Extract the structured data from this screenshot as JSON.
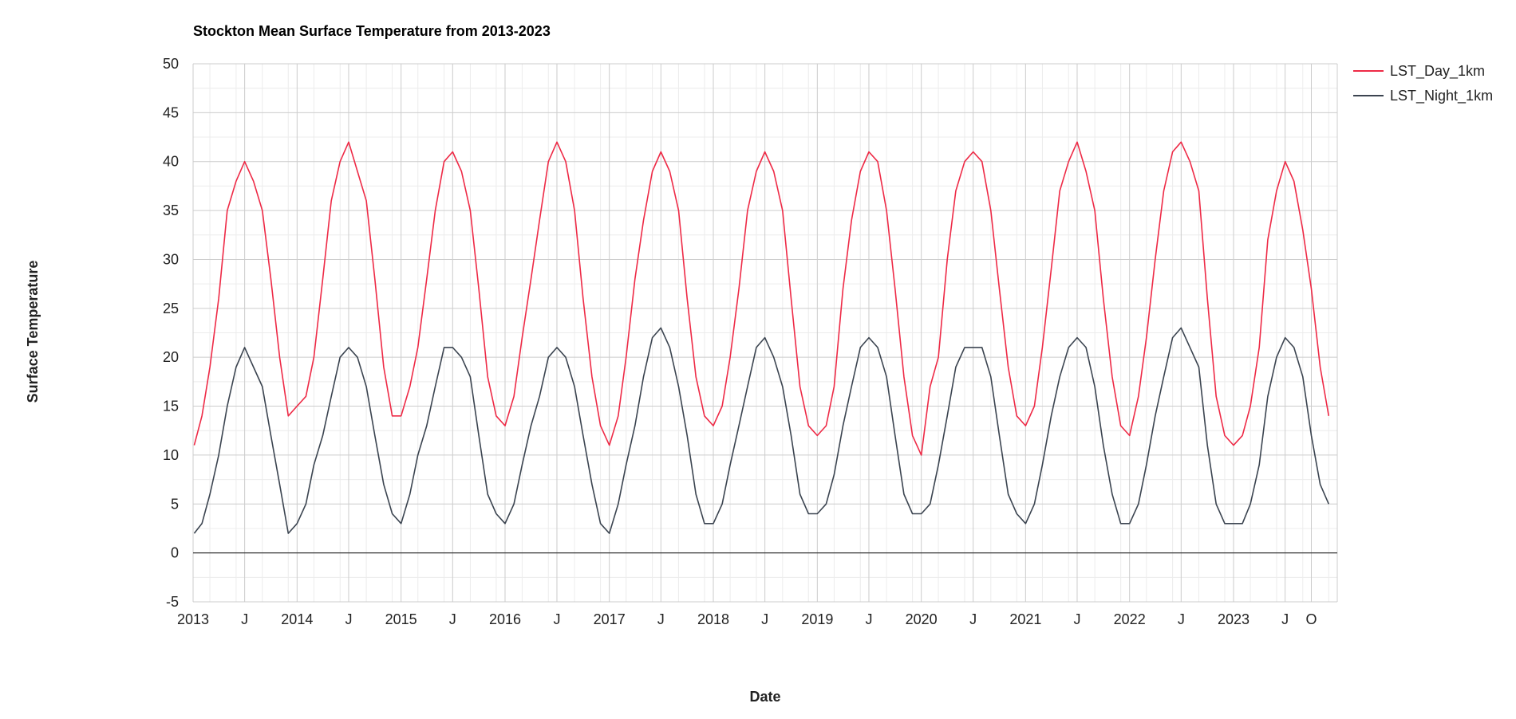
{
  "chart_data": {
    "type": "line",
    "title": "Stockton Mean Surface Temperature from 2013-2023",
    "xlabel": "Date",
    "ylabel": "Surface Temperature",
    "ylim": [
      -5,
      50
    ],
    "yticks": [
      -5,
      0,
      5,
      10,
      15,
      20,
      25,
      30,
      35,
      40,
      45,
      50
    ],
    "xlim": [
      "2013-01-01",
      "2023-12-31"
    ],
    "xticks": [
      {
        "date": "2013-01-01",
        "label": "2013"
      },
      {
        "date": "2013-07-01",
        "label": "J"
      },
      {
        "date": "2014-01-01",
        "label": "2014"
      },
      {
        "date": "2014-07-01",
        "label": "J"
      },
      {
        "date": "2015-01-01",
        "label": "2015"
      },
      {
        "date": "2015-07-01",
        "label": "J"
      },
      {
        "date": "2016-01-01",
        "label": "2016"
      },
      {
        "date": "2016-07-01",
        "label": "J"
      },
      {
        "date": "2017-01-01",
        "label": "2017"
      },
      {
        "date": "2017-07-01",
        "label": "J"
      },
      {
        "date": "2018-01-01",
        "label": "2018"
      },
      {
        "date": "2018-07-01",
        "label": "J"
      },
      {
        "date": "2019-01-01",
        "label": "2019"
      },
      {
        "date": "2019-07-01",
        "label": "J"
      },
      {
        "date": "2020-01-01",
        "label": "2020"
      },
      {
        "date": "2020-07-01",
        "label": "J"
      },
      {
        "date": "2021-01-01",
        "label": "2021"
      },
      {
        "date": "2021-07-01",
        "label": "J"
      },
      {
        "date": "2022-01-01",
        "label": "2022"
      },
      {
        "date": "2022-07-01",
        "label": "J"
      },
      {
        "date": "2023-01-01",
        "label": "2023"
      },
      {
        "date": "2023-07-01",
        "label": "J"
      },
      {
        "date": "2023-10-01",
        "label": "O"
      }
    ],
    "grid": true,
    "legend_position": "top-right",
    "series": [
      {
        "name": "LST_Day_1km",
        "color": "#ee2a46",
        "points": [
          [
            "2013-01-05",
            11
          ],
          [
            "2013-02-01",
            14
          ],
          [
            "2013-03-01",
            19
          ],
          [
            "2013-04-01",
            26
          ],
          [
            "2013-05-01",
            35
          ],
          [
            "2013-06-01",
            38
          ],
          [
            "2013-07-01",
            40
          ],
          [
            "2013-08-01",
            38
          ],
          [
            "2013-09-01",
            35
          ],
          [
            "2013-10-01",
            28
          ],
          [
            "2013-11-01",
            20
          ],
          [
            "2013-12-01",
            14
          ],
          [
            "2014-01-01",
            15
          ],
          [
            "2014-02-01",
            16
          ],
          [
            "2014-03-01",
            20
          ],
          [
            "2014-04-01",
            28
          ],
          [
            "2014-05-01",
            36
          ],
          [
            "2014-06-01",
            40
          ],
          [
            "2014-07-01",
            42
          ],
          [
            "2014-08-01",
            39
          ],
          [
            "2014-09-01",
            36
          ],
          [
            "2014-10-01",
            28
          ],
          [
            "2014-11-01",
            19
          ],
          [
            "2014-12-01",
            14
          ],
          [
            "2015-01-01",
            14
          ],
          [
            "2015-02-01",
            17
          ],
          [
            "2015-03-01",
            21
          ],
          [
            "2015-04-01",
            28
          ],
          [
            "2015-05-01",
            35
          ],
          [
            "2015-06-01",
            40
          ],
          [
            "2015-07-01",
            41
          ],
          [
            "2015-08-01",
            39
          ],
          [
            "2015-09-01",
            35
          ],
          [
            "2015-10-01",
            27
          ],
          [
            "2015-11-01",
            18
          ],
          [
            "2015-12-01",
            14
          ],
          [
            "2016-01-01",
            13
          ],
          [
            "2016-02-01",
            16
          ],
          [
            "2016-03-01",
            22
          ],
          [
            "2016-04-01",
            28
          ],
          [
            "2016-05-01",
            34
          ],
          [
            "2016-06-01",
            40
          ],
          [
            "2016-07-01",
            42
          ],
          [
            "2016-08-01",
            40
          ],
          [
            "2016-09-01",
            35
          ],
          [
            "2016-10-01",
            26
          ],
          [
            "2016-11-01",
            18
          ],
          [
            "2016-12-01",
            13
          ],
          [
            "2017-01-01",
            11
          ],
          [
            "2017-02-01",
            14
          ],
          [
            "2017-03-01",
            20
          ],
          [
            "2017-04-01",
            28
          ],
          [
            "2017-05-01",
            34
          ],
          [
            "2017-06-01",
            39
          ],
          [
            "2017-07-01",
            41
          ],
          [
            "2017-08-01",
            39
          ],
          [
            "2017-09-01",
            35
          ],
          [
            "2017-10-01",
            26
          ],
          [
            "2017-11-01",
            18
          ],
          [
            "2017-12-01",
            14
          ],
          [
            "2018-01-01",
            13
          ],
          [
            "2018-02-01",
            15
          ],
          [
            "2018-03-01",
            20
          ],
          [
            "2018-04-01",
            27
          ],
          [
            "2018-05-01",
            35
          ],
          [
            "2018-06-01",
            39
          ],
          [
            "2018-07-01",
            41
          ],
          [
            "2018-08-01",
            39
          ],
          [
            "2018-09-01",
            35
          ],
          [
            "2018-10-01",
            26
          ],
          [
            "2018-11-01",
            17
          ],
          [
            "2018-12-01",
            13
          ],
          [
            "2019-01-01",
            12
          ],
          [
            "2019-02-01",
            13
          ],
          [
            "2019-03-01",
            17
          ],
          [
            "2019-04-01",
            27
          ],
          [
            "2019-05-01",
            34
          ],
          [
            "2019-06-01",
            39
          ],
          [
            "2019-07-01",
            41
          ],
          [
            "2019-08-01",
            40
          ],
          [
            "2019-09-01",
            35
          ],
          [
            "2019-10-01",
            27
          ],
          [
            "2019-11-01",
            18
          ],
          [
            "2019-12-01",
            12
          ],
          [
            "2020-01-01",
            10
          ],
          [
            "2020-02-01",
            17
          ],
          [
            "2020-03-01",
            20
          ],
          [
            "2020-04-01",
            30
          ],
          [
            "2020-05-01",
            37
          ],
          [
            "2020-06-01",
            40
          ],
          [
            "2020-07-01",
            41
          ],
          [
            "2020-08-01",
            40
          ],
          [
            "2020-09-01",
            35
          ],
          [
            "2020-10-01",
            27
          ],
          [
            "2020-11-01",
            19
          ],
          [
            "2020-12-01",
            14
          ],
          [
            "2021-01-01",
            13
          ],
          [
            "2021-02-01",
            15
          ],
          [
            "2021-03-01",
            21
          ],
          [
            "2021-04-01",
            29
          ],
          [
            "2021-05-01",
            37
          ],
          [
            "2021-06-01",
            40
          ],
          [
            "2021-07-01",
            42
          ],
          [
            "2021-08-01",
            39
          ],
          [
            "2021-09-01",
            35
          ],
          [
            "2021-10-01",
            26
          ],
          [
            "2021-11-01",
            18
          ],
          [
            "2021-12-01",
            13
          ],
          [
            "2022-01-01",
            12
          ],
          [
            "2022-02-01",
            16
          ],
          [
            "2022-03-01",
            22
          ],
          [
            "2022-04-01",
            30
          ],
          [
            "2022-05-01",
            37
          ],
          [
            "2022-06-01",
            41
          ],
          [
            "2022-07-01",
            42
          ],
          [
            "2022-08-01",
            40
          ],
          [
            "2022-09-01",
            37
          ],
          [
            "2022-10-01",
            26
          ],
          [
            "2022-11-01",
            16
          ],
          [
            "2022-12-01",
            12
          ],
          [
            "2023-01-01",
            11
          ],
          [
            "2023-02-01",
            12
          ],
          [
            "2023-03-01",
            15
          ],
          [
            "2023-04-01",
            21
          ],
          [
            "2023-05-01",
            32
          ],
          [
            "2023-06-01",
            37
          ],
          [
            "2023-07-01",
            40
          ],
          [
            "2023-08-01",
            38
          ],
          [
            "2023-09-01",
            33
          ],
          [
            "2023-10-01",
            27
          ],
          [
            "2023-11-01",
            19
          ],
          [
            "2023-12-01",
            14
          ]
        ]
      },
      {
        "name": "LST_Night_1km",
        "color": "#3b4450",
        "points": [
          [
            "2013-01-05",
            2
          ],
          [
            "2013-02-01",
            3
          ],
          [
            "2013-03-01",
            6
          ],
          [
            "2013-04-01",
            10
          ],
          [
            "2013-05-01",
            15
          ],
          [
            "2013-06-01",
            19
          ],
          [
            "2013-07-01",
            21
          ],
          [
            "2013-08-01",
            19
          ],
          [
            "2013-09-01",
            17
          ],
          [
            "2013-10-01",
            12
          ],
          [
            "2013-11-01",
            7
          ],
          [
            "2013-12-01",
            2
          ],
          [
            "2014-01-01",
            3
          ],
          [
            "2014-02-01",
            5
          ],
          [
            "2014-03-01",
            9
          ],
          [
            "2014-04-01",
            12
          ],
          [
            "2014-05-01",
            16
          ],
          [
            "2014-06-01",
            20
          ],
          [
            "2014-07-01",
            21
          ],
          [
            "2014-08-01",
            20
          ],
          [
            "2014-09-01",
            17
          ],
          [
            "2014-10-01",
            12
          ],
          [
            "2014-11-01",
            7
          ],
          [
            "2014-12-01",
            4
          ],
          [
            "2015-01-01",
            3
          ],
          [
            "2015-02-01",
            6
          ],
          [
            "2015-03-01",
            10
          ],
          [
            "2015-04-01",
            13
          ],
          [
            "2015-05-01",
            17
          ],
          [
            "2015-06-01",
            21
          ],
          [
            "2015-07-01",
            21
          ],
          [
            "2015-08-01",
            20
          ],
          [
            "2015-09-01",
            18
          ],
          [
            "2015-10-01",
            12
          ],
          [
            "2015-11-01",
            6
          ],
          [
            "2015-12-01",
            4
          ],
          [
            "2016-01-01",
            3
          ],
          [
            "2016-02-01",
            5
          ],
          [
            "2016-03-01",
            9
          ],
          [
            "2016-04-01",
            13
          ],
          [
            "2016-05-01",
            16
          ],
          [
            "2016-06-01",
            20
          ],
          [
            "2016-07-01",
            21
          ],
          [
            "2016-08-01",
            20
          ],
          [
            "2016-09-01",
            17
          ],
          [
            "2016-10-01",
            12
          ],
          [
            "2016-11-01",
            7
          ],
          [
            "2016-12-01",
            3
          ],
          [
            "2017-01-01",
            2
          ],
          [
            "2017-02-01",
            5
          ],
          [
            "2017-03-01",
            9
          ],
          [
            "2017-04-01",
            13
          ],
          [
            "2017-05-01",
            18
          ],
          [
            "2017-06-01",
            22
          ],
          [
            "2017-07-01",
            23
          ],
          [
            "2017-08-01",
            21
          ],
          [
            "2017-09-01",
            17
          ],
          [
            "2017-10-01",
            12
          ],
          [
            "2017-11-01",
            6
          ],
          [
            "2017-12-01",
            3
          ],
          [
            "2018-01-01",
            3
          ],
          [
            "2018-02-01",
            5
          ],
          [
            "2018-03-01",
            9
          ],
          [
            "2018-04-01",
            13
          ],
          [
            "2018-05-01",
            17
          ],
          [
            "2018-06-01",
            21
          ],
          [
            "2018-07-01",
            22
          ],
          [
            "2018-08-01",
            20
          ],
          [
            "2018-09-01",
            17
          ],
          [
            "2018-10-01",
            12
          ],
          [
            "2018-11-01",
            6
          ],
          [
            "2018-12-01",
            4
          ],
          [
            "2019-01-01",
            4
          ],
          [
            "2019-02-01",
            5
          ],
          [
            "2019-03-01",
            8
          ],
          [
            "2019-04-01",
            13
          ],
          [
            "2019-05-01",
            17
          ],
          [
            "2019-06-01",
            21
          ],
          [
            "2019-07-01",
            22
          ],
          [
            "2019-08-01",
            21
          ],
          [
            "2019-09-01",
            18
          ],
          [
            "2019-10-01",
            12
          ],
          [
            "2019-11-01",
            6
          ],
          [
            "2019-12-01",
            4
          ],
          [
            "2020-01-01",
            4
          ],
          [
            "2020-02-01",
            5
          ],
          [
            "2020-03-01",
            9
          ],
          [
            "2020-04-01",
            14
          ],
          [
            "2020-05-01",
            19
          ],
          [
            "2020-06-01",
            21
          ],
          [
            "2020-07-01",
            21
          ],
          [
            "2020-08-01",
            21
          ],
          [
            "2020-09-01",
            18
          ],
          [
            "2020-10-01",
            12
          ],
          [
            "2020-11-01",
            6
          ],
          [
            "2020-12-01",
            4
          ],
          [
            "2021-01-01",
            3
          ],
          [
            "2021-02-01",
            5
          ],
          [
            "2021-03-01",
            9
          ],
          [
            "2021-04-01",
            14
          ],
          [
            "2021-05-01",
            18
          ],
          [
            "2021-06-01",
            21
          ],
          [
            "2021-07-01",
            22
          ],
          [
            "2021-08-01",
            21
          ],
          [
            "2021-09-01",
            17
          ],
          [
            "2021-10-01",
            11
          ],
          [
            "2021-11-01",
            6
          ],
          [
            "2021-12-01",
            3
          ],
          [
            "2022-01-01",
            3
          ],
          [
            "2022-02-01",
            5
          ],
          [
            "2022-03-01",
            9
          ],
          [
            "2022-04-01",
            14
          ],
          [
            "2022-05-01",
            18
          ],
          [
            "2022-06-01",
            22
          ],
          [
            "2022-07-01",
            23
          ],
          [
            "2022-08-01",
            21
          ],
          [
            "2022-09-01",
            19
          ],
          [
            "2022-10-01",
            11
          ],
          [
            "2022-11-01",
            5
          ],
          [
            "2022-12-01",
            3
          ],
          [
            "2023-01-01",
            3
          ],
          [
            "2023-02-01",
            3
          ],
          [
            "2023-03-01",
            5
          ],
          [
            "2023-04-01",
            9
          ],
          [
            "2023-05-01",
            16
          ],
          [
            "2023-06-01",
            20
          ],
          [
            "2023-07-01",
            22
          ],
          [
            "2023-08-01",
            21
          ],
          [
            "2023-09-01",
            18
          ],
          [
            "2023-10-01",
            12
          ],
          [
            "2023-11-01",
            7
          ],
          [
            "2023-12-01",
            5
          ]
        ]
      }
    ]
  }
}
